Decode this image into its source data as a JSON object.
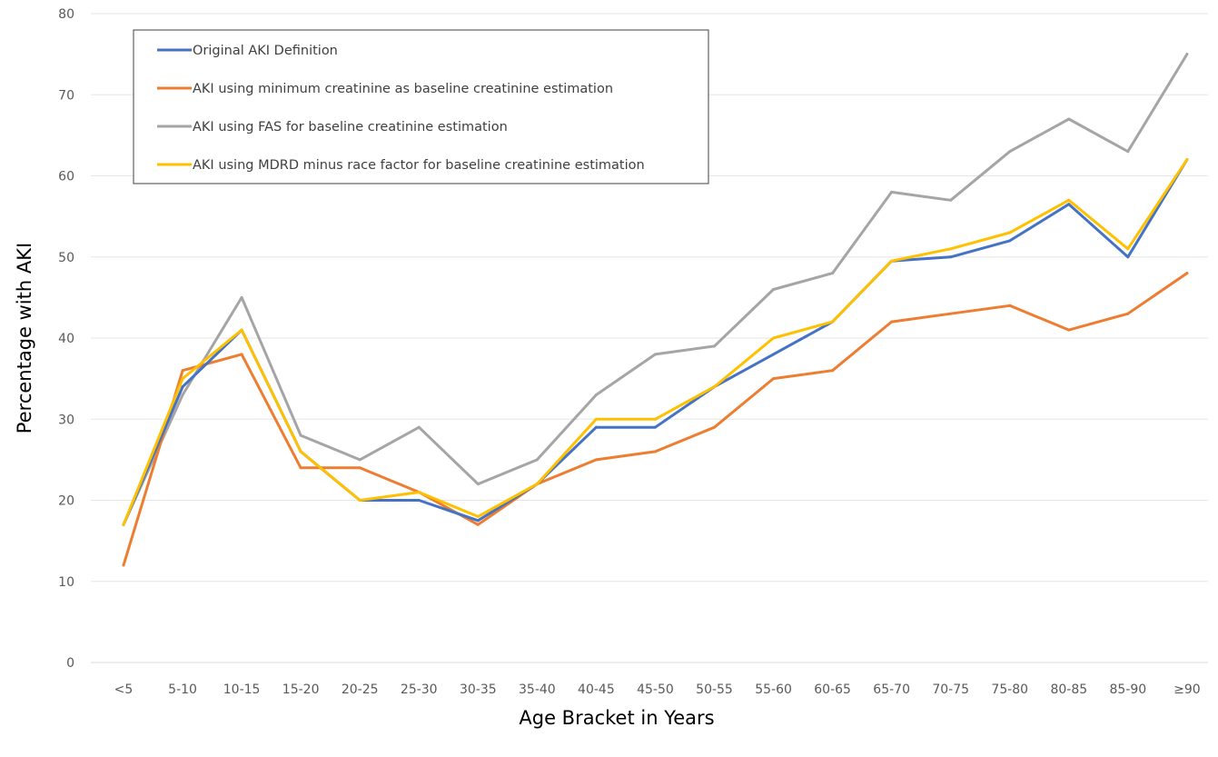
{
  "chart_data": {
    "type": "line",
    "xlabel": "Age Bracket in Years",
    "ylabel": "Percentage with AKI",
    "ylim": [
      0,
      80
    ],
    "yticks": [
      0,
      10,
      20,
      30,
      40,
      50,
      60,
      70,
      80
    ],
    "grid": true,
    "legend_position": "top-left",
    "categories": [
      "<5",
      "5-10",
      "10-15",
      "15-20",
      "20-25",
      "25-30",
      "30-35",
      "35-40",
      "40-45",
      "45-50",
      "50-55",
      "55-60",
      "60-65",
      "65-70",
      "70-75",
      "75-80",
      "80-85",
      "85-90",
      "≥90"
    ],
    "series": [
      {
        "name": "Original AKI Definition",
        "color": "#4472C4",
        "values": [
          17,
          34,
          41,
          26,
          20,
          20,
          17.5,
          22,
          29,
          29,
          34,
          38,
          42,
          49.5,
          50,
          52,
          56.5,
          50,
          62
        ]
      },
      {
        "name": "AKI using minimum creatinine as baseline creatinine estimation",
        "color": "#ED7D31",
        "values": [
          12,
          36,
          38,
          24,
          24,
          21,
          17,
          22,
          25,
          26,
          29,
          35,
          36,
          42,
          43,
          44,
          41,
          43,
          48
        ]
      },
      {
        "name": "AKI using FAS for baseline creatinine estimation",
        "color": "#A5A5A5",
        "values": [
          17,
          33,
          45,
          28,
          25,
          29,
          22,
          25,
          33,
          38,
          39,
          46,
          48,
          58,
          57,
          63,
          67,
          63,
          75
        ]
      },
      {
        "name": "AKI using MDRD minus race factor for baseline creatinine estimation",
        "color": "#FFC000",
        "values": [
          17,
          35,
          41,
          26,
          20,
          21,
          18,
          22,
          30,
          30,
          34,
          40,
          42,
          49.5,
          51,
          53,
          57,
          51,
          62
        ]
      }
    ]
  }
}
